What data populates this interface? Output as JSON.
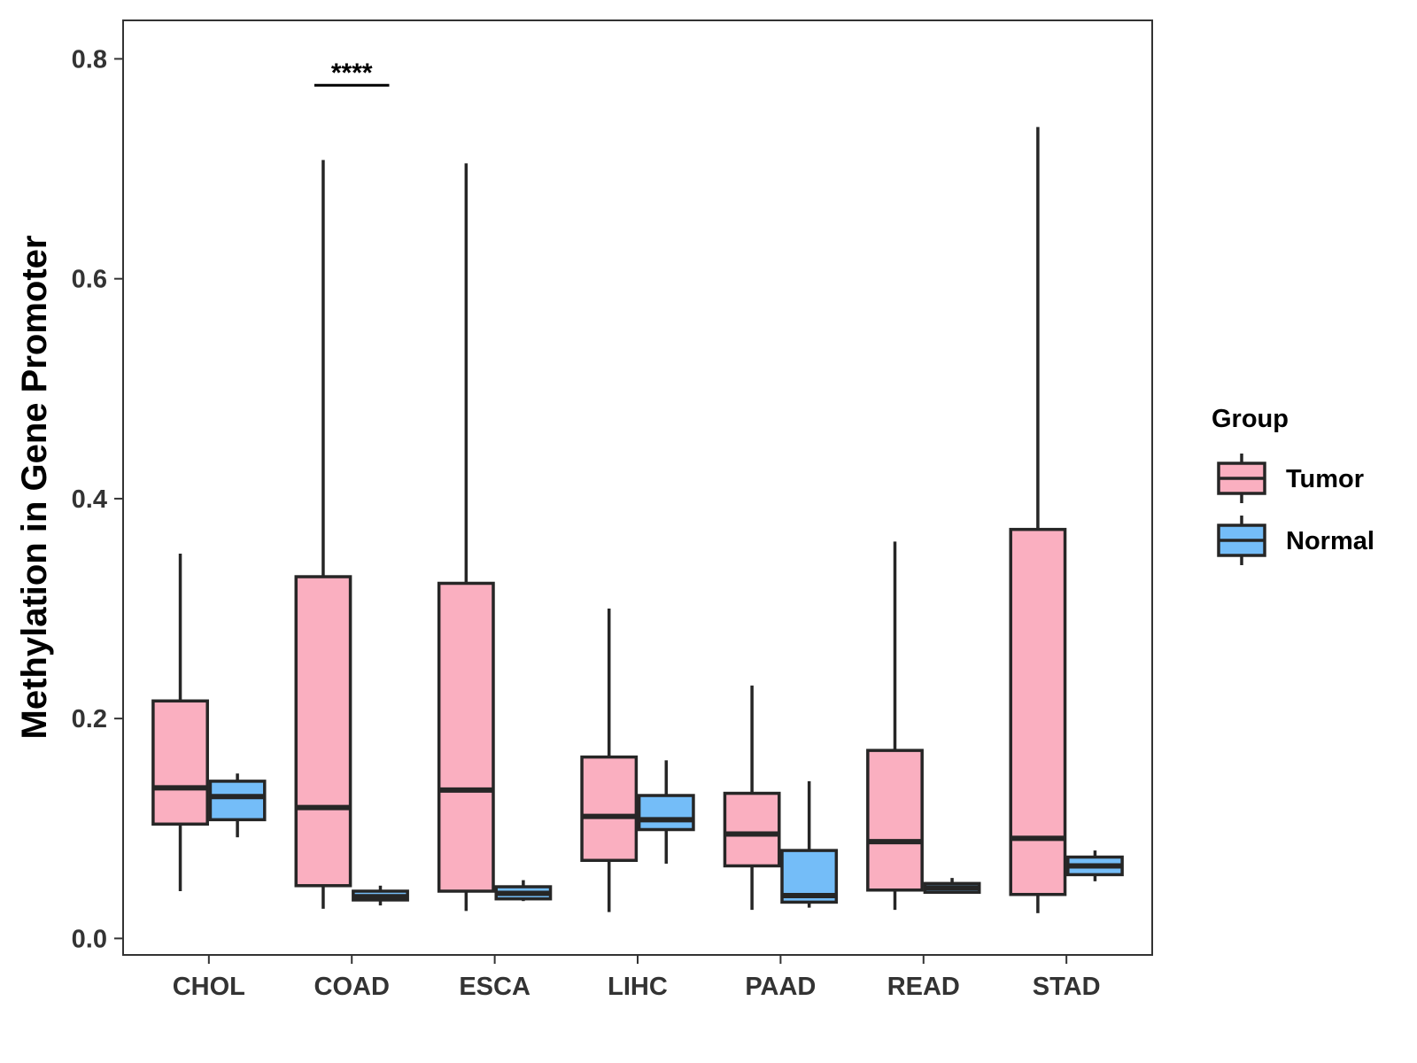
{
  "chart_data": {
    "type": "boxplot",
    "title": "",
    "xlabel": "",
    "ylabel": "Methylation in Gene Promoter",
    "ylim": [
      -0.015,
      0.835
    ],
    "yticks": [
      "0.0",
      "0.2",
      "0.4",
      "0.6",
      "0.8"
    ],
    "ytick_values": [
      0.0,
      0.2,
      0.4,
      0.6,
      0.8
    ],
    "grid": false,
    "categories": [
      "CHOL",
      "COAD",
      "ESCA",
      "LIHC",
      "PAAD",
      "READ",
      "STAD"
    ],
    "legend": {
      "title": "Group",
      "placement": "right",
      "entries": [
        {
          "label": "Tumor",
          "color": "#FAAFC0"
        },
        {
          "label": "Normal",
          "color": "#74BDF8"
        }
      ]
    },
    "series": [
      {
        "name": "Tumor",
        "color": "#FAAFC0",
        "boxes": [
          {
            "category": "CHOL",
            "min": 0.043,
            "q1": 0.104,
            "median": 0.137,
            "q3": 0.216,
            "max": 0.35
          },
          {
            "category": "COAD",
            "min": 0.027,
            "q1": 0.048,
            "median": 0.119,
            "q3": 0.329,
            "max": 0.708
          },
          {
            "category": "ESCA",
            "min": 0.025,
            "q1": 0.043,
            "median": 0.135,
            "q3": 0.323,
            "max": 0.705
          },
          {
            "category": "LIHC",
            "min": 0.024,
            "q1": 0.071,
            "median": 0.111,
            "q3": 0.165,
            "max": 0.3
          },
          {
            "category": "PAAD",
            "min": 0.026,
            "q1": 0.066,
            "median": 0.095,
            "q3": 0.132,
            "max": 0.23
          },
          {
            "category": "READ",
            "min": 0.026,
            "q1": 0.044,
            "median": 0.088,
            "q3": 0.171,
            "max": 0.361
          },
          {
            "category": "STAD",
            "min": 0.023,
            "q1": 0.04,
            "median": 0.091,
            "q3": 0.372,
            "max": 0.738
          }
        ]
      },
      {
        "name": "Normal",
        "color": "#74BDF8",
        "boxes": [
          {
            "category": "CHOL",
            "min": 0.092,
            "q1": 0.108,
            "median": 0.129,
            "q3": 0.143,
            "max": 0.15
          },
          {
            "category": "COAD",
            "min": 0.03,
            "q1": 0.035,
            "median": 0.038,
            "q3": 0.043,
            "max": 0.048
          },
          {
            "category": "ESCA",
            "min": 0.034,
            "q1": 0.036,
            "median": 0.041,
            "q3": 0.047,
            "max": 0.053
          },
          {
            "category": "LIHC",
            "min": 0.068,
            "q1": 0.099,
            "median": 0.108,
            "q3": 0.13,
            "max": 0.162
          },
          {
            "category": "PAAD",
            "min": 0.028,
            "q1": 0.033,
            "median": 0.039,
            "q3": 0.08,
            "max": 0.143
          },
          {
            "category": "READ",
            "min": 0.041,
            "q1": 0.042,
            "median": 0.046,
            "q3": 0.05,
            "max": 0.055
          },
          {
            "category": "STAD",
            "min": 0.052,
            "q1": 0.058,
            "median": 0.066,
            "q3": 0.074,
            "max": 0.08
          }
        ]
      }
    ],
    "annotations": [
      {
        "category": "COAD",
        "label": "****",
        "y": 0.776
      }
    ]
  }
}
